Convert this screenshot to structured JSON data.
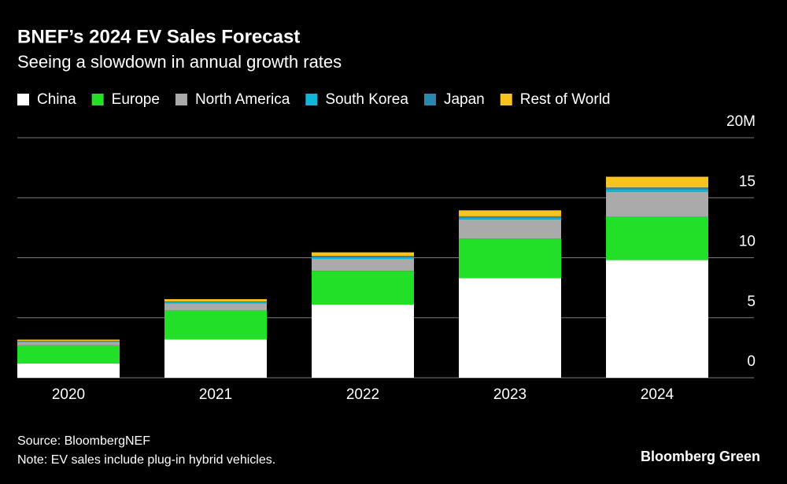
{
  "chart_data": {
    "type": "stacked_bar",
    "title": "BNEF’s 2024 EV Sales Forecast",
    "subtitle": "Seeing a slowdown in annual growth rates",
    "categories": [
      "2020",
      "2021",
      "2022",
      "2023",
      "2024"
    ],
    "series": [
      {
        "name": "China",
        "color": "#ffffff",
        "values": [
          1.2,
          3.2,
          6.1,
          8.3,
          9.8
        ]
      },
      {
        "name": "Europe",
        "color": "#22e027",
        "values": [
          1.5,
          2.4,
          2.8,
          3.3,
          3.6
        ]
      },
      {
        "name": "North America",
        "color": "#aaaaaa",
        "values": [
          0.3,
          0.6,
          1.0,
          1.6,
          2.1
        ]
      },
      {
        "name": "South Korea",
        "color": "#0fb6d6",
        "values": [
          0.05,
          0.1,
          0.15,
          0.15,
          0.2
        ]
      },
      {
        "name": "Japan",
        "color": "#2a88b0",
        "values": [
          0.03,
          0.05,
          0.1,
          0.1,
          0.15
        ]
      },
      {
        "name": "Rest of World",
        "color": "#f7c31e",
        "values": [
          0.1,
          0.2,
          0.3,
          0.5,
          0.9
        ]
      }
    ],
    "ylim": [
      0,
      20
    ],
    "yticks": [
      0,
      5,
      10,
      15,
      {
        "value": 20,
        "label": "20M"
      }
    ],
    "grid": true,
    "source": "Source: BloombergNEF",
    "note": "Note: EV sales include plug-in hybrid vehicles.",
    "brand": "Bloomberg Green"
  }
}
